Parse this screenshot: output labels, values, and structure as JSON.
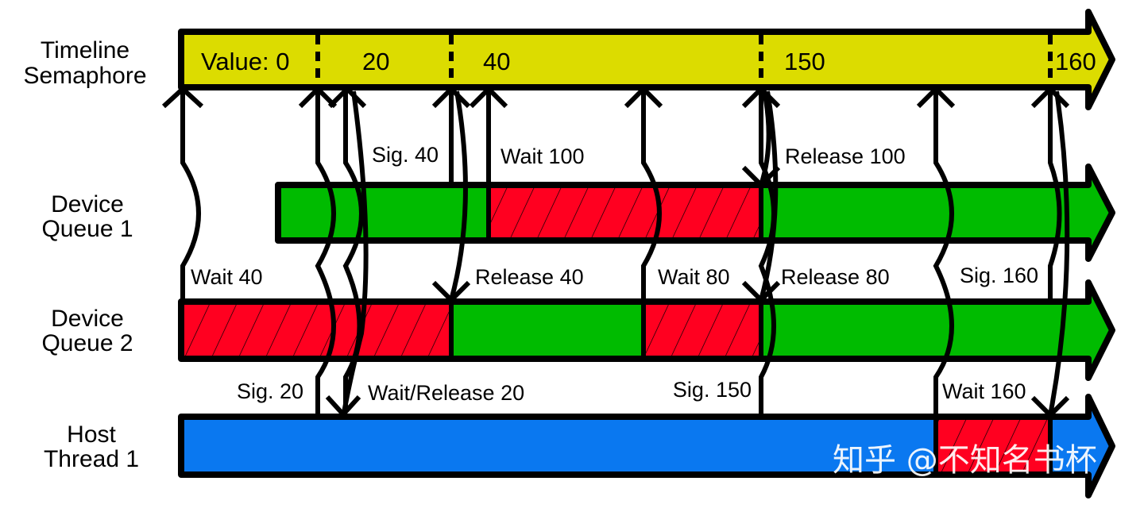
{
  "lanes": {
    "timeline": {
      "line1": "Timeline",
      "line2": "Semaphore"
    },
    "queue1": {
      "line1": "Device",
      "line2": "Queue 1"
    },
    "queue2": {
      "line1": "Device",
      "line2": "Queue 2"
    },
    "host": {
      "line1": "Host",
      "line2": "Thread 1"
    }
  },
  "values": [
    "Value: 0",
    "20",
    "40",
    "150",
    "160"
  ],
  "events": {
    "sig40": "Sig. 40",
    "wait100": "Wait 100",
    "release100": "Release 100",
    "wait40": "Wait 40",
    "release40": "Release 40",
    "wait80": "Wait 80",
    "release80": "Release 80",
    "sig160": "Sig. 160",
    "sig20": "Sig. 20",
    "waitrelease20": "Wait/Release 20",
    "sig150": "Sig. 150",
    "wait160": "Wait 160"
  },
  "watermark": "知乎 @不知名书杯",
  "colors": {
    "timeline": "#dcdc00",
    "running": "#00bb00",
    "waiting": "#ff0020",
    "host": "#0a78f0"
  }
}
